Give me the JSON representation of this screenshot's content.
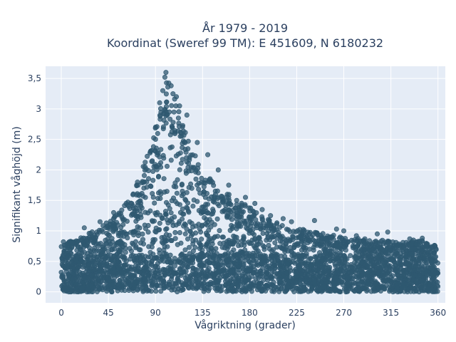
{
  "chart_data": {
    "type": "scatter",
    "title_line1": "År 1979 - 2019",
    "title_line2": "Koordinat (Sweref 99 TM): E 451609, N 6180232",
    "xlabel": "Vågriktning (grader)",
    "ylabel": "Signifikant våghöjd (m)",
    "xlim": [
      -15,
      367
    ],
    "ylim": [
      -0.18,
      3.7
    ],
    "x_ticks": [
      {
        "value": 0,
        "label": "0"
      },
      {
        "value": 45,
        "label": "45"
      },
      {
        "value": 90,
        "label": "90"
      },
      {
        "value": 135,
        "label": "135"
      },
      {
        "value": 180,
        "label": "180"
      },
      {
        "value": 225,
        "label": "225"
      },
      {
        "value": 270,
        "label": "270"
      },
      {
        "value": 315,
        "label": "315"
      },
      {
        "value": 360,
        "label": "360"
      }
    ],
    "y_ticks": [
      {
        "value": 0,
        "label": "0"
      },
      {
        "value": 0.5,
        "label": "0,5"
      },
      {
        "value": 1,
        "label": "1"
      },
      {
        "value": 1.5,
        "label": "1,5"
      },
      {
        "value": 2,
        "label": "2"
      },
      {
        "value": 2.5,
        "label": "2,5"
      },
      {
        "value": 3,
        "label": "3"
      },
      {
        "value": 3.5,
        "label": "3,5"
      }
    ],
    "grid": true,
    "marker_color": "#2f5870",
    "plot_background": "#e5ecf6",
    "envelope": {
      "x": [
        0,
        15,
        30,
        45,
        60,
        75,
        90,
        100,
        110,
        120,
        135,
        150,
        165,
        180,
        195,
        210,
        225,
        240,
        255,
        270,
        285,
        300,
        315,
        330,
        345,
        360
      ],
      "y_max": [
        0.8,
        0.85,
        1.0,
        1.15,
        1.4,
        1.9,
        2.7,
        3.6,
        3.2,
        2.6,
        2.0,
        1.75,
        1.55,
        1.4,
        1.25,
        1.1,
        1.05,
        1.0,
        0.95,
        0.9,
        0.88,
        0.85,
        0.85,
        0.85,
        0.85,
        0.8
      ],
      "y_min": 0.0
    },
    "highlight_points": [
      {
        "x": 100,
        "y": 3.6
      },
      {
        "x": 99,
        "y": 3.52
      },
      {
        "x": 105,
        "y": 3.38
      },
      {
        "x": 97,
        "y": 3.3
      },
      {
        "x": 110,
        "y": 3.2
      },
      {
        "x": 113,
        "y": 3.05
      },
      {
        "x": 94,
        "y": 3.1
      },
      {
        "x": 120,
        "y": 2.9
      },
      {
        "x": 130,
        "y": 2.45
      },
      {
        "x": 140,
        "y": 2.25
      },
      {
        "x": 150,
        "y": 2.0
      },
      {
        "x": 160,
        "y": 1.75
      },
      {
        "x": 176,
        "y": 1.55
      },
      {
        "x": 185,
        "y": 1.45
      },
      {
        "x": 192,
        "y": 1.35
      },
      {
        "x": 200,
        "y": 1.25
      },
      {
        "x": 212,
        "y": 1.2
      },
      {
        "x": 220,
        "y": 1.15
      },
      {
        "x": 242,
        "y": 1.17
      },
      {
        "x": 263,
        "y": 1.03
      },
      {
        "x": 270,
        "y": 1.0
      },
      {
        "x": 282,
        "y": 0.92
      },
      {
        "x": 302,
        "y": 0.95
      },
      {
        "x": 312,
        "y": 0.98
      },
      {
        "x": 333,
        "y": 0.87
      },
      {
        "x": 345,
        "y": 0.88
      },
      {
        "x": 80,
        "y": 2.05
      },
      {
        "x": 72,
        "y": 1.75
      },
      {
        "x": 62,
        "y": 1.45
      },
      {
        "x": 50,
        "y": 1.3
      },
      {
        "x": 37,
        "y": 1.15
      },
      {
        "x": 22,
        "y": 1.05
      },
      {
        "x": 10,
        "y": 0.82
      },
      {
        "x": 2,
        "y": 0.82
      }
    ]
  }
}
